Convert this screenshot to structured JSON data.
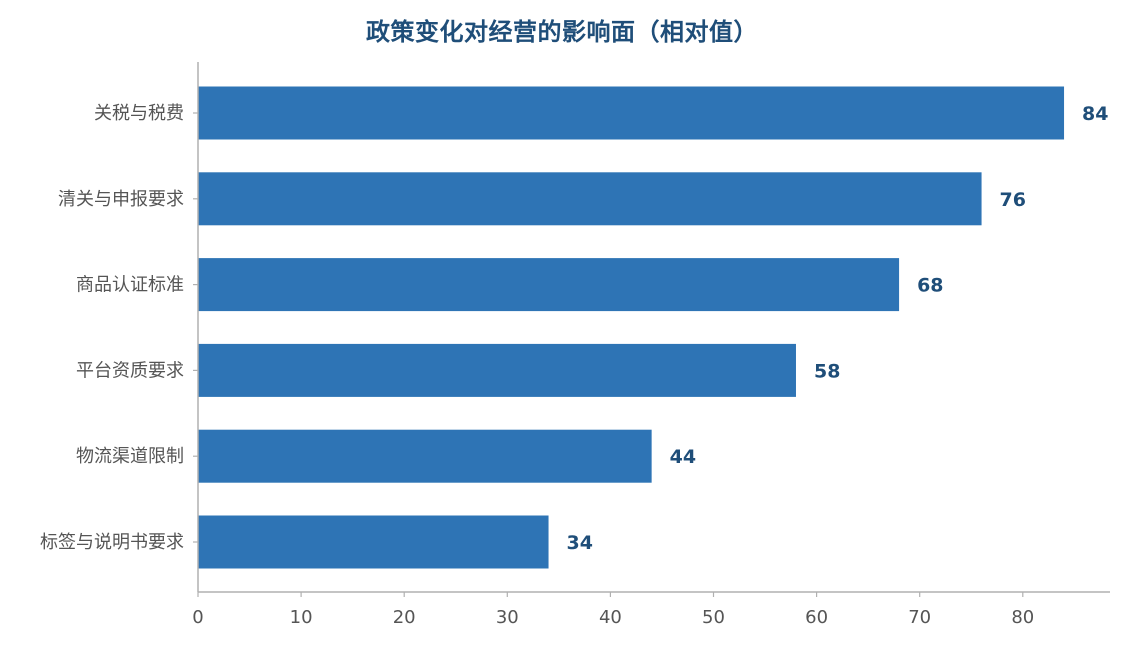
{
  "chart_data": {
    "type": "bar",
    "orientation": "horizontal",
    "title": "政策变化对经营的影响面（相对值）",
    "categories": [
      "关税与税费",
      "清关与申报要求",
      "商品认证标准",
      "平台资质要求",
      "物流渠道限制",
      "标签与说明书要求"
    ],
    "values": [
      84,
      76,
      68,
      58,
      44,
      34
    ],
    "xlim": [
      0,
      88
    ],
    "xticks": [
      0,
      10,
      20,
      30,
      40,
      50,
      60,
      70,
      80
    ],
    "grid": false,
    "data_labels": true,
    "colors": {
      "bar": "#2e74b5",
      "value_label": "#1f4e79",
      "title": "#1f4e79",
      "axis": "#b0b0b0",
      "tick_label": "#555555"
    }
  }
}
